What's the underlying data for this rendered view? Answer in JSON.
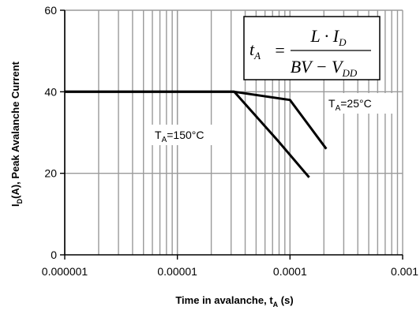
{
  "chart_data": {
    "type": "line",
    "x_scale": "log",
    "xlim": [
      1e-06,
      0.001
    ],
    "ylim": [
      0,
      60
    ],
    "x_ticks": [
      "0.000001",
      "0.00001",
      "0.0001",
      "0.001"
    ],
    "y_ticks": [
      "0",
      "20",
      "40",
      "60"
    ],
    "xlabel": {
      "main": "Time in avalanche, t",
      "sub": "A",
      "suffix": " (s)"
    },
    "ylabel": {
      "main": "I",
      "sub": "D",
      "suffix": "(A), Peak Avalanche Current"
    },
    "grid": true,
    "series": [
      {
        "name": "TA=25°C",
        "label": {
          "main": "T",
          "sub": "A",
          "suffix": "=25°C"
        },
        "x": [
          1e-06,
          3.2e-05,
          0.0001,
          0.00021
        ],
        "y": [
          40,
          40,
          38,
          26
        ]
      },
      {
        "name": "TA=150°C",
        "label": {
          "main": "T",
          "sub": "A",
          "suffix": "=150°C"
        },
        "x": [
          1e-06,
          3.2e-05,
          7.8e-05,
          0.000148
        ],
        "y": [
          40,
          40,
          28,
          19
        ]
      }
    ],
    "formula": {
      "lhs": "t",
      "lhs_sub": "A",
      "equals": "=",
      "numerator": "L · I",
      "numerator_sub": "D",
      "denominator": "BV − V",
      "denominator_sub": "DD"
    },
    "line_color": "#000000",
    "grid_color": "#9a9a9a"
  }
}
